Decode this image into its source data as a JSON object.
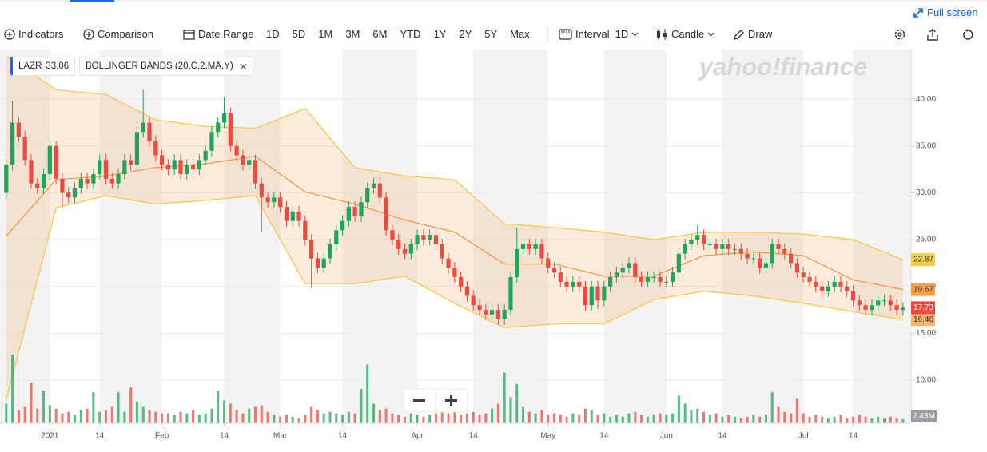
{
  "toolbar": {
    "full_screen": "Full screen",
    "indicators": "Indicators",
    "comparison": "Comparison",
    "date_range": "Date Range",
    "ranges": [
      "1D",
      "5D",
      "1M",
      "3M",
      "6M",
      "YTD",
      "1Y",
      "2Y",
      "5Y",
      "Max"
    ],
    "interval_label": "Interval",
    "interval": "1D",
    "chart_style": "Candle",
    "draw": "Draw"
  },
  "chart_data": {
    "type": "candlestick",
    "watermark": "yahoo!finance",
    "symbol": "LAZR",
    "symbol_price": 33.06,
    "indicator": "BOLLINGER BANDS (20,C,2,MA,Y)",
    "up_color": "#1fa55c",
    "down_color": "#ef4a3f",
    "open": [
      30,
      33,
      37.5,
      36,
      33.5,
      31,
      30.5,
      32,
      35,
      31.5,
      30,
      29.5,
      30.5,
      31.5,
      31,
      32,
      33.5,
      31.5,
      31,
      32,
      33.5,
      33,
      36.5,
      37.5,
      35.5,
      34,
      33,
      32.5,
      33.5,
      32,
      33,
      32.5,
      33.5,
      34.5,
      36.5,
      37.5,
      38.5,
      35,
      34,
      33,
      33.5,
      31,
      29.5,
      29,
      29.5,
      28.5,
      27,
      28,
      27,
      25,
      23,
      22,
      23,
      24.5,
      26,
      27,
      28.5,
      27.5,
      29,
      30.5,
      31,
      29.5,
      26,
      25,
      24,
      23.5,
      24.5,
      25.5,
      25,
      25.5,
      24.5,
      23,
      22,
      21,
      20,
      19,
      18,
      17.5,
      17,
      17.5,
      16.5,
      17.5,
      21,
      24,
      24.5,
      24,
      24.5,
      23,
      22,
      21.5,
      20.5,
      20,
      20.5,
      20,
      18,
      20,
      18.5,
      20,
      21,
      21.5,
      22,
      22.5,
      21,
      20.5,
      21,
      21,
      20.5,
      20.5,
      21.5,
      23.5,
      24.5,
      25,
      25.5,
      24.5,
      24.5,
      24,
      24.5,
      24,
      24,
      23.5,
      23,
      23,
      22,
      22.5,
      24.5,
      24,
      23.5,
      22.5,
      21.5,
      21,
      20.5,
      20,
      19.5,
      20,
      20.5,
      20,
      19.5,
      18.5,
      18,
      17.5,
      18,
      18.5,
      18.5,
      18,
      17.5
    ],
    "high": [
      33.6,
      39.8,
      38.1,
      36.6,
      34.1,
      31.6,
      32.6,
      35.6,
      35.6,
      32.1,
      30.6,
      31.1,
      32.1,
      32.1,
      32.6,
      34.1,
      34.1,
      32.1,
      32.6,
      34.1,
      34.1,
      37.1,
      41,
      38.1,
      36.1,
      34.6,
      33.6,
      34.1,
      34.1,
      33.6,
      33.6,
      34.1,
      35.1,
      37.1,
      38.1,
      40.2,
      39.1,
      35.6,
      34.6,
      34.1,
      34.1,
      31.6,
      30.1,
      30.1,
      30.1,
      29.1,
      28.6,
      28.6,
      27.6,
      25.6,
      23.6,
      23.6,
      25.1,
      26.6,
      27.6,
      29.1,
      29.1,
      29.6,
      31.1,
      31.6,
      31.6,
      30.1,
      26.6,
      25.6,
      24.6,
      25.1,
      26.1,
      26.1,
      26.1,
      26.1,
      25.1,
      23.6,
      22.6,
      21.6,
      20.6,
      19.6,
      18.6,
      18.1,
      18.1,
      18.1,
      18.1,
      21.6,
      26.3,
      25.1,
      25.1,
      25.1,
      25.1,
      23.6,
      22.6,
      22.1,
      21.1,
      21.1,
      21.1,
      20.6,
      20.6,
      20.6,
      20.6,
      21.6,
      22.1,
      22.6,
      23.1,
      23.1,
      21.6,
      21.6,
      21.6,
      21.6,
      21.1,
      22.1,
      24.1,
      25.1,
      25.6,
      26.6,
      26.1,
      25.1,
      25.1,
      25.1,
      25.1,
      24.6,
      24.6,
      24.1,
      23.6,
      23.6,
      23.1,
      25.1,
      25.1,
      24.6,
      24.1,
      23.1,
      22.1,
      21.6,
      21.1,
      20.6,
      20.6,
      21.1,
      21.1,
      20.6,
      20.1,
      19.1,
      18.6,
      18.6,
      19.1,
      19.1,
      19.1,
      18.6,
      18.3
    ],
    "low": [
      29.4,
      32.4,
      35.4,
      32.9,
      30.4,
      29.9,
      29.9,
      31.4,
      30.9,
      28.5,
      28.9,
      28.9,
      29.9,
      30.4,
      30.4,
      31.4,
      30.9,
      30.4,
      30.4,
      31.4,
      32.4,
      32.4,
      35.9,
      34.9,
      33.4,
      32.4,
      31.9,
      31.9,
      31.4,
      31.4,
      31.9,
      31.9,
      32.9,
      33.9,
      35.9,
      36.9,
      34.4,
      33.4,
      32.4,
      32.4,
      30.4,
      25.8,
      28.4,
      28.4,
      27.9,
      26.4,
      26.4,
      26.4,
      24.4,
      19.8,
      21.4,
      21.4,
      22.4,
      23.9,
      25.4,
      26.4,
      26.9,
      26.9,
      28.4,
      29.9,
      28.9,
      25.4,
      24.4,
      23.4,
      22.9,
      22.9,
      23.9,
      24.4,
      24.4,
      23.9,
      22.4,
      21.4,
      20.4,
      19.4,
      18.4,
      17.4,
      16.9,
      16.4,
      16.4,
      15.9,
      15.9,
      16.9,
      20.4,
      23.4,
      23.4,
      23.4,
      22.4,
      21.4,
      20.9,
      19.9,
      19.4,
      19.4,
      19.4,
      17.4,
      17.4,
      17.6,
      17.9,
      19.4,
      20.4,
      20.9,
      21.4,
      20.4,
      19.9,
      19.9,
      20.4,
      19.9,
      19.9,
      19.9,
      20.9,
      22.9,
      23.9,
      24.4,
      23.9,
      23.9,
      23.4,
      23.4,
      23.4,
      23.4,
      22.9,
      22.4,
      22.4,
      21.4,
      21.4,
      21.9,
      23.4,
      22.9,
      21.9,
      20.9,
      20.4,
      19.9,
      19.4,
      18.9,
      18.9,
      19.4,
      19.4,
      18.9,
      17.9,
      17.4,
      16.9,
      16.9,
      17.4,
      17.9,
      17.4,
      16.9,
      16.9
    ],
    "close": [
      33,
      37.5,
      36,
      33.5,
      31,
      30.5,
      32,
      35,
      31.5,
      30,
      29.5,
      30.5,
      31.5,
      31,
      32,
      33.5,
      31.5,
      31,
      32,
      33.5,
      33,
      36.5,
      37.5,
      35.5,
      34,
      33,
      32.5,
      33.5,
      32,
      33,
      32.5,
      33.5,
      34.5,
      36.5,
      37.5,
      38.5,
      35,
      34,
      33,
      33.5,
      31,
      29.5,
      29,
      29.5,
      28.5,
      27,
      28,
      27,
      25,
      23,
      22,
      23,
      24.5,
      26,
      27,
      28.5,
      27.5,
      29,
      30.5,
      31,
      29.5,
      26,
      25,
      24,
      23.5,
      24.5,
      25.5,
      25,
      25.5,
      24.5,
      23,
      22,
      21,
      20,
      19,
      18,
      17.5,
      17,
      17.5,
      16.5,
      17.5,
      21,
      24,
      24.5,
      24,
      24.5,
      23,
      22,
      21.5,
      20.5,
      20,
      20.5,
      20,
      18,
      20,
      18.5,
      20,
      21,
      21.5,
      22,
      22.5,
      21,
      20.5,
      21,
      21,
      20.5,
      20.5,
      21.5,
      23.5,
      24.5,
      25,
      25.5,
      24.5,
      24.5,
      24,
      24.5,
      24,
      24,
      23.5,
      23,
      23,
      22,
      22.5,
      24.5,
      24,
      23.5,
      22.5,
      21.5,
      21,
      20.5,
      20,
      19.5,
      20,
      20.5,
      20,
      19.5,
      18.5,
      18,
      17.5,
      18,
      18.5,
      18.5,
      18,
      17.5,
      17.73
    ],
    "bands": {
      "x": [
        0,
        8,
        16,
        24,
        32,
        40,
        48,
        56,
        64,
        72,
        80,
        88,
        96,
        104,
        112,
        120,
        128,
        136,
        144
      ],
      "upper": [
        44.6,
        41,
        40.5,
        37.8,
        37.1,
        36.9,
        39,
        32.7,
        31.8,
        31.4,
        26.7,
        26.3,
        25.8,
        25,
        25.8,
        25.8,
        25.6,
        25,
        22.87
      ],
      "middle": [
        25.4,
        31.4,
        31.8,
        32.7,
        33.1,
        33.9,
        30.1,
        28.8,
        27.1,
        25.8,
        22.4,
        22.4,
        21.1,
        21.1,
        23.3,
        23.7,
        23.3,
        20.7,
        19.67
      ],
      "lower": [
        7.9,
        28.4,
        29.7,
        28.8,
        29.2,
        29.7,
        20.3,
        20.3,
        21.1,
        18.2,
        15.6,
        16,
        16,
        18.6,
        19.5,
        19,
        18.2,
        17.3,
        16.46
      ],
      "upper_color": "#f5c842",
      "middle_color": "#f7953d",
      "lower_color": "#f5c842",
      "fill": "#f7a04c"
    },
    "volume": {
      "values": [
        12,
        42,
        8,
        10,
        25,
        9,
        20,
        11,
        9,
        6,
        7,
        5,
        8,
        9,
        19,
        7,
        8,
        10,
        19,
        7,
        22,
        13,
        10,
        8,
        7,
        6,
        6,
        5,
        7,
        6,
        8,
        5,
        6,
        9,
        20,
        14,
        12,
        8,
        6,
        9,
        10,
        11,
        7,
        5,
        4,
        5,
        4,
        3,
        5,
        10,
        8,
        6,
        7,
        6,
        5,
        7,
        6,
        21,
        36,
        12,
        8,
        9,
        6,
        5,
        4,
        6,
        5,
        4,
        5,
        6,
        8,
        6,
        7,
        5,
        6,
        7,
        5,
        6,
        9,
        12,
        31,
        16,
        24,
        10,
        7,
        6,
        8,
        5,
        6,
        5,
        4,
        6,
        5,
        9,
        8,
        5,
        6,
        4,
        5,
        4,
        6,
        7,
        5,
        4,
        5,
        6,
        5,
        6,
        17,
        12,
        8,
        9,
        7,
        5,
        6,
        4,
        5,
        4,
        3,
        4,
        5,
        4,
        5,
        19,
        10,
        7,
        6,
        15,
        6,
        4,
        5,
        4,
        3,
        4,
        5,
        3,
        4,
        5,
        4,
        3,
        4,
        3,
        4,
        3,
        2.43
      ],
      "label": "2.43M"
    },
    "ylim": [
      5.4,
      45.3
    ],
    "yticks": [
      {
        "value": 10,
        "label": "10.00"
      },
      {
        "value": 15,
        "label": "15.00"
      },
      {
        "value": 20,
        "label": "20.00"
      },
      {
        "value": 25,
        "label": "25.00"
      },
      {
        "value": 30,
        "label": "30.00"
      },
      {
        "value": 35,
        "label": "35.00"
      },
      {
        "value": 40,
        "label": "40.00"
      }
    ],
    "y2lim": [
      0,
      44
    ],
    "xlim": [
      -1,
      145.3
    ],
    "xticks": [
      {
        "value": 7,
        "label": "2021"
      },
      {
        "value": 15,
        "label": "14"
      },
      {
        "value": 25,
        "label": "Feb"
      },
      {
        "value": 35,
        "label": "14"
      },
      {
        "value": 44,
        "label": "Mar"
      },
      {
        "value": 54,
        "label": "14"
      },
      {
        "value": 66,
        "label": "Apr"
      },
      {
        "value": 75,
        "label": "14"
      },
      {
        "value": 87,
        "label": "May"
      },
      {
        "value": 96,
        "label": "14"
      },
      {
        "value": 106,
        "label": "Jun"
      },
      {
        "value": 115,
        "label": "14"
      },
      {
        "value": 128,
        "label": "Jul"
      },
      {
        "value": 136,
        "label": "14"
      }
    ],
    "grid": true
  }
}
